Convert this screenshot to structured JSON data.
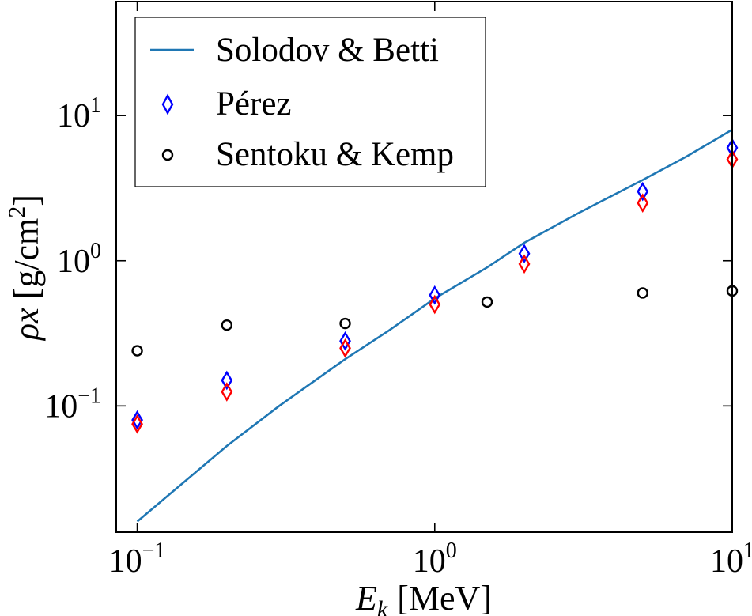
{
  "chart_data": {
    "type": "scatter",
    "xscale": "log",
    "yscale": "log",
    "xlim": [
      0.085,
      10.0
    ],
    "ylim": [
      0.0135,
      61.0
    ],
    "xlabel": {
      "main": "E",
      "sub": "k",
      "rest": "[MeV]"
    },
    "ylabel": {
      "main": "ρx",
      "rest": "[g/cm",
      "sup": "2",
      "close": "]"
    },
    "xticks": [
      {
        "value": 0.1,
        "base": "10",
        "exp": "−1"
      },
      {
        "value": 1,
        "base": "10",
        "exp": "0"
      },
      {
        "value": 10,
        "base": "10",
        "exp": "1"
      }
    ],
    "yticks": [
      {
        "value": 0.1,
        "base": "10",
        "exp": "−1"
      },
      {
        "value": 1,
        "base": "10",
        "exp": "0"
      },
      {
        "value": 10,
        "base": "10",
        "exp": "1"
      }
    ],
    "grid": false,
    "legend_position": "top-left",
    "series": [
      {
        "name": "Solodov & Betti",
        "kind": "line",
        "color": "#1f77b4",
        "points": [
          [
            0.1,
            0.016
          ],
          [
            0.2,
            0.053
          ],
          [
            0.3,
            0.1
          ],
          [
            0.5,
            0.21
          ],
          [
            0.7,
            0.33
          ],
          [
            1.0,
            0.55
          ],
          [
            1.5,
            0.9
          ],
          [
            2.0,
            1.33
          ],
          [
            3.0,
            2.1
          ],
          [
            5.0,
            3.6
          ],
          [
            7.0,
            5.2
          ],
          [
            10.0,
            8.0
          ]
        ]
      },
      {
        "name": "Pérez",
        "kind": "diamond",
        "color": "#0000ff",
        "points": [
          [
            0.1,
            0.08
          ],
          [
            0.2,
            0.15
          ],
          [
            0.5,
            0.28
          ],
          [
            1.0,
            0.58
          ],
          [
            2.0,
            1.12
          ],
          [
            5.0,
            3.0
          ],
          [
            10.0,
            6.0
          ]
        ]
      },
      {
        "name": "",
        "kind": "diamond",
        "color": "#ff0000",
        "points": [
          [
            0.1,
            0.075
          ],
          [
            0.2,
            0.125
          ],
          [
            0.5,
            0.25
          ],
          [
            1.0,
            0.5
          ],
          [
            2.0,
            0.95
          ],
          [
            5.0,
            2.5
          ],
          [
            10.0,
            5.0
          ]
        ]
      },
      {
        "name": "Sentoku & Kemp",
        "kind": "circle",
        "color": "#000000",
        "points": [
          [
            0.1,
            0.24
          ],
          [
            0.2,
            0.36
          ],
          [
            0.5,
            0.37
          ],
          [
            1.5,
            0.52
          ],
          [
            5.0,
            0.6
          ],
          [
            10.0,
            0.62
          ]
        ]
      }
    ]
  }
}
